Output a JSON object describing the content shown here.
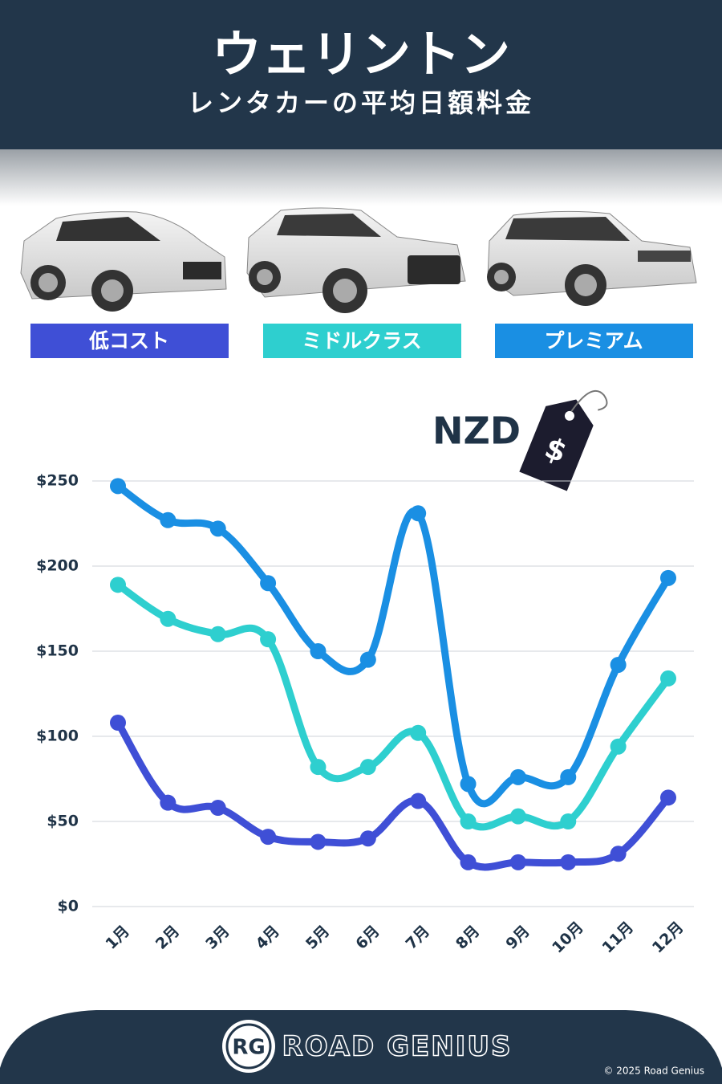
{
  "header": {
    "title": "ウェリントン",
    "subtitle": "レンタカーの平均日額料金"
  },
  "chart_data": {
    "type": "line",
    "annotation": "NZD",
    "tag_symbol": "$",
    "categories": [
      "1月",
      "2月",
      "3月",
      "4月",
      "5月",
      "6月",
      "7月",
      "8月",
      "9月",
      "10月",
      "11月",
      "12月"
    ],
    "series": [
      {
        "name": "低コスト",
        "color": "#3f4fd6",
        "values": [
          108,
          61,
          58,
          41,
          38,
          40,
          62,
          26,
          26,
          26,
          31,
          64
        ]
      },
      {
        "name": "ミドルクラス",
        "color": "#2ecfcf",
        "values": [
          189,
          169,
          160,
          157,
          82,
          82,
          102,
          50,
          53,
          50,
          94,
          134
        ]
      },
      {
        "name": "プレミアム",
        "color": "#1a8fe3",
        "values": [
          247,
          227,
          222,
          190,
          150,
          145,
          231,
          72,
          76,
          76,
          142,
          193
        ]
      }
    ],
    "ylim": [
      0,
      250
    ],
    "yticks": [
      {
        "value": 0,
        "label": "$0"
      },
      {
        "value": 50,
        "label": "$50"
      },
      {
        "value": 100,
        "label": "$100"
      },
      {
        "value": 150,
        "label": "$150"
      },
      {
        "value": 200,
        "label": "$200"
      },
      {
        "value": 250,
        "label": "$250"
      }
    ],
    "grid": true
  },
  "footer": {
    "logo": "RG",
    "brand": "ROAD GENIUS",
    "copyright": "© 2025 Road Genius"
  }
}
